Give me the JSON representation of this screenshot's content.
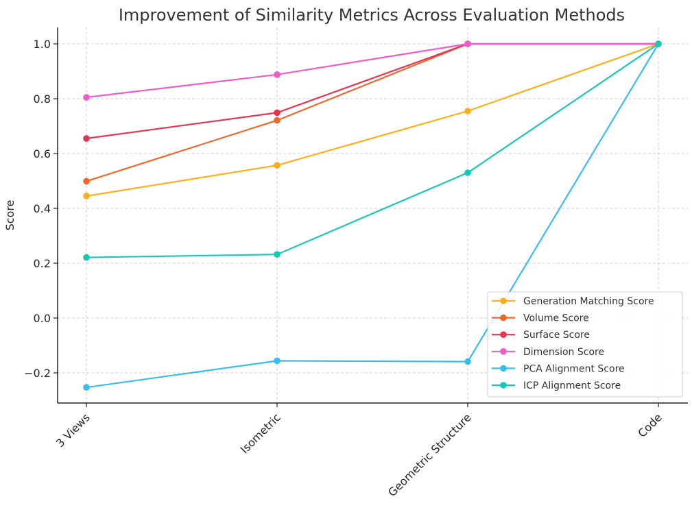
{
  "chart_data": {
    "type": "line",
    "title": "Improvement of Similarity Metrics Across Evaluation Methods",
    "xlabel": "",
    "ylabel": "Score",
    "categories": [
      "3 Views",
      "Isometric",
      "Geometric Structure",
      "Code"
    ],
    "ylim": [
      -0.31,
      1.06
    ],
    "yticks": [
      -0.2,
      0.0,
      0.2,
      0.4,
      0.6,
      0.8,
      1.0
    ],
    "ytick_labels": [
      "−0.2",
      "0.0",
      "0.2",
      "0.4",
      "0.6",
      "0.8",
      "1.0"
    ],
    "grid": true,
    "legend_position": "lower-right",
    "series": [
      {
        "name": "Generation Matching Score",
        "color": "#FFAE1A",
        "values": [
          0.445,
          0.557,
          0.755,
          1.0
        ]
      },
      {
        "name": "Volume Score",
        "color": "#F0672A",
        "values": [
          0.499,
          0.721,
          1.0,
          1.0
        ]
      },
      {
        "name": "Surface Score",
        "color": "#E8334F",
        "values": [
          0.655,
          0.749,
          1.0,
          1.0
        ]
      },
      {
        "name": "Dimension Score",
        "color": "#F05BC6",
        "values": [
          0.805,
          0.888,
          1.0,
          1.0
        ]
      },
      {
        "name": "PCA Alignment Score",
        "color": "#35BDF2",
        "values": [
          -0.253,
          -0.156,
          -0.159,
          1.0
        ]
      },
      {
        "name": "ICP Alignment Score",
        "color": "#16C7B7",
        "values": [
          0.221,
          0.232,
          0.53,
          1.0
        ]
      }
    ]
  }
}
